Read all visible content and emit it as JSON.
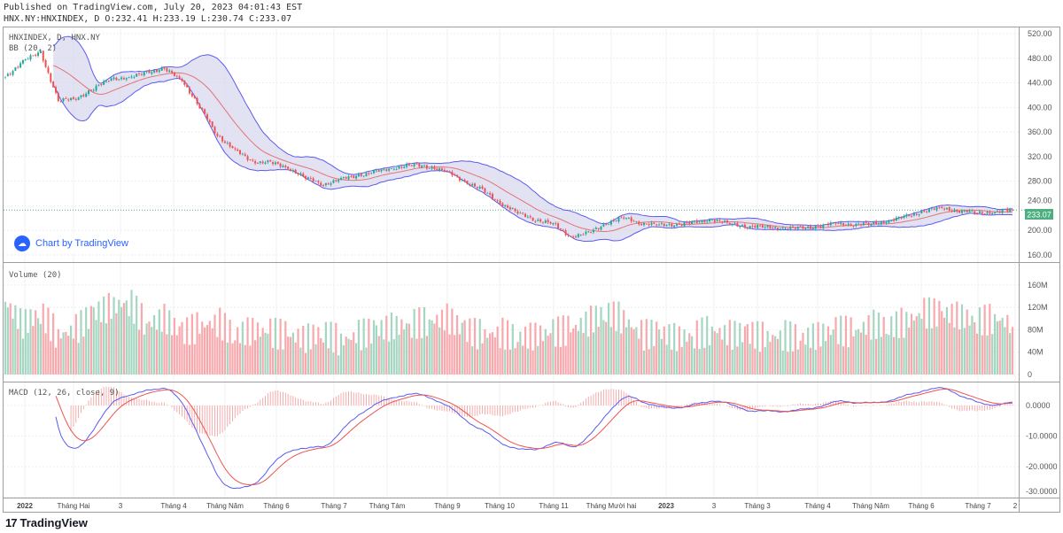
{
  "header": {
    "published": "Published on TradingView.com, July 20, 2023 04:01:43 EST",
    "ohlc": "HNX.NY:HNXINDEX, D O:232.41 H:233.19 L:230.74 C:233.07"
  },
  "legend": {
    "symbol": "HNXINDEX, D, HNX.NY",
    "bb": "BB (20, 2)",
    "volume": "Volume (20)",
    "macd": "MACD (12, 26, close, 9)"
  },
  "watermark": "Chart by TradingView",
  "footer_logo": "TradingView",
  "colors": {
    "up": "#26a69a",
    "down": "#ef5350",
    "up_vol": "#a5d6c1",
    "down_vol": "#f7a9ad",
    "bb_band": "#5b5bf0",
    "bb_basis": "#e57373",
    "bb_fill": "#d6d6ee",
    "macd": "#5b5bf0",
    "signal": "#ef5350",
    "last_price": "#4caf7f"
  },
  "last_price_label": "233.07",
  "chart_data": {
    "type": "candlestick",
    "price_axis": {
      "ticks": [
        "520.00",
        "480.00",
        "440.00",
        "400.00",
        "360.00",
        "320.00",
        "280.00",
        "240.00",
        "200.00",
        "160.00"
      ],
      "range": [
        160,
        520
      ]
    },
    "volume_axis": {
      "ticks": [
        "160M",
        "120M",
        "80M",
        "40M",
        "0"
      ],
      "range": [
        0,
        160
      ]
    },
    "macd_axis": {
      "ticks": [
        "0.0000",
        "-10.0000",
        "-20.0000",
        "-30.0000"
      ],
      "range": [
        -30,
        8
      ]
    },
    "x_labels": [
      "2022",
      "Tháng Hai",
      "3",
      "Tháng 4",
      "Tháng Năm",
      "Tháng 6",
      "Tháng 7",
      "Tháng Tám",
      "Tháng 9",
      "Tháng 10",
      "Tháng 11",
      "Tháng Mười hai",
      "2023",
      "3",
      "Tháng 3",
      "Tháng 4",
      "Tháng Năm",
      "Tháng 6",
      "Tháng 7",
      "2"
    ],
    "bars_between_anchors": 7,
    "close_anchors": [
      450,
      475,
      490,
      410,
      415,
      430,
      448,
      447,
      458,
      462,
      445,
      400,
      355,
      330,
      312,
      310,
      302,
      285,
      275,
      283,
      290,
      295,
      302,
      306,
      304,
      295,
      280,
      265,
      245,
      228,
      218,
      210,
      190,
      195,
      212,
      220,
      212,
      208,
      210,
      212,
      218,
      210,
      207,
      205,
      204,
      203,
      207,
      211,
      210,
      210,
      216,
      222,
      232,
      236,
      232,
      228,
      230,
      233
    ],
    "volume_anchors_m": [
      130,
      90,
      110,
      70,
      80,
      110,
      120,
      130,
      90,
      100,
      75,
      85,
      95,
      70,
      80,
      75,
      70,
      65,
      75,
      60,
      70,
      80,
      85,
      90,
      95,
      100,
      80,
      70,
      75,
      65,
      70,
      75,
      80,
      95,
      110,
      100,
      70,
      75,
      65,
      70,
      80,
      70,
      75,
      65,
      70,
      65,
      70,
      80,
      75,
      90,
      85,
      95,
      110,
      110,
      105,
      95,
      100,
      90
    ],
    "last_close": 233.07
  }
}
